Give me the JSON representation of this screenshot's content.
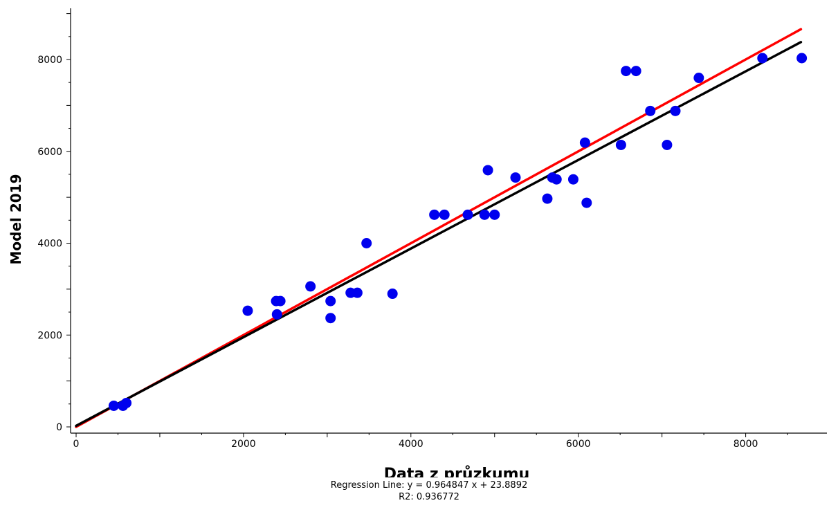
{
  "chart_data": {
    "type": "scatter",
    "xlabel": "Data z průzkumu",
    "ylabel": "Model 2019",
    "xlim": [
      -80,
      9000
    ],
    "ylim": [
      -100,
      9100
    ],
    "xticks": [
      0,
      2000,
      4000,
      6000,
      8000
    ],
    "yticks": [
      0,
      2000,
      4000,
      6000,
      8000
    ],
    "xtick_labels": [
      "0",
      "2000",
      "4000",
      "6000",
      "8000"
    ],
    "ytick_labels": [
      "0",
      "2000",
      "4000",
      "6000",
      "8000"
    ],
    "grid": false,
    "point_color": "#0000ee",
    "points": [
      [
        450,
        460
      ],
      [
        560,
        460
      ],
      [
        600,
        520
      ],
      [
        2050,
        2530
      ],
      [
        2390,
        2740
      ],
      [
        2400,
        2450
      ],
      [
        2440,
        2740
      ],
      [
        2800,
        3060
      ],
      [
        3040,
        2740
      ],
      [
        3040,
        2370
      ],
      [
        3280,
        2920
      ],
      [
        3360,
        2920
      ],
      [
        3470,
        4000
      ],
      [
        3780,
        2900
      ],
      [
        4280,
        4620
      ],
      [
        4400,
        4620
      ],
      [
        4680,
        4620
      ],
      [
        4880,
        4620
      ],
      [
        4920,
        5590
      ],
      [
        5000,
        4620
      ],
      [
        5250,
        5430
      ],
      [
        5630,
        4970
      ],
      [
        5690,
        5430
      ],
      [
        5740,
        5390
      ],
      [
        5940,
        5390
      ],
      [
        6080,
        6190
      ],
      [
        6100,
        4880
      ],
      [
        6510,
        6140
      ],
      [
        6570,
        7750
      ],
      [
        6690,
        7750
      ],
      [
        6860,
        6880
      ],
      [
        7060,
        6140
      ],
      [
        7160,
        6880
      ],
      [
        7440,
        7600
      ],
      [
        8200,
        8030
      ],
      [
        8670,
        8030
      ]
    ],
    "lines": [
      {
        "role": "identity",
        "color": "#ff0000",
        "x": [
          0,
          8660
        ],
        "y": [
          0,
          8660
        ]
      },
      {
        "role": "regression",
        "color": "#000000",
        "x": [
          0,
          8660
        ],
        "y": [
          23.8892,
          8379.0646
        ]
      }
    ]
  },
  "caption": {
    "line1": "Regression Line: y = 0.964847 x + 23.8892",
    "line2": "R2: 0.936772"
  }
}
